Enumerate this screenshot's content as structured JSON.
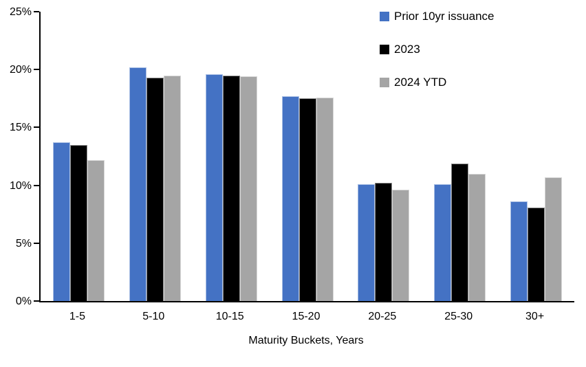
{
  "chart_data": {
    "type": "bar",
    "title": "",
    "xlabel": "Maturity Buckets, Years",
    "ylabel": "",
    "categories": [
      "1-5",
      "5-10",
      "10-15",
      "15-20",
      "20-25",
      "25-30",
      "30+"
    ],
    "series": [
      {
        "name": "Prior 10yr issuance",
        "color": "#4472C4",
        "values": [
          13.7,
          20.2,
          19.6,
          17.7,
          10.1,
          10.1,
          8.6
        ]
      },
      {
        "name": "2023",
        "color": "#000000",
        "values": [
          13.5,
          19.3,
          19.5,
          17.5,
          10.2,
          11.9,
          8.1
        ]
      },
      {
        "name": "2024 YTD",
        "color": "#A5A5A5",
        "values": [
          12.2,
          19.5,
          19.4,
          17.6,
          9.6,
          11.0,
          10.7
        ]
      }
    ],
    "ylim": [
      0,
      25
    ],
    "ytick_step": 5,
    "ytick_labels": [
      "0%",
      "5%",
      "10%",
      "15%",
      "20%",
      "25%"
    ],
    "legend_position": "top-right",
    "grid": false,
    "axis_color": "#000000",
    "background_color": "#FFFFFF"
  }
}
